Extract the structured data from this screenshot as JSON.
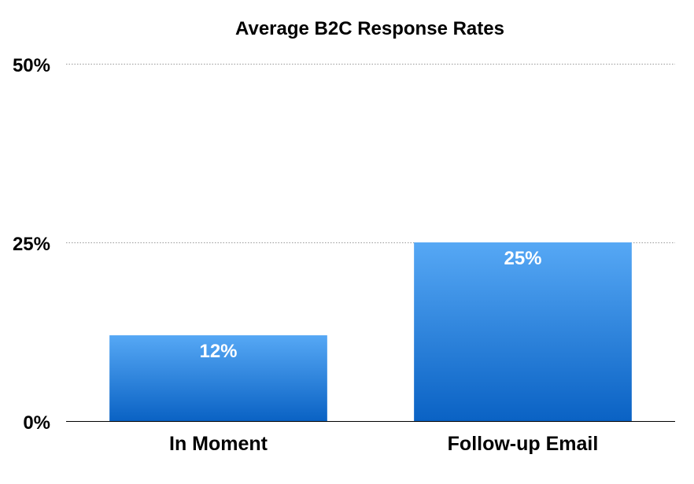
{
  "chart_data": {
    "type": "bar",
    "title": "Average B2C Response Rates",
    "categories": [
      "In Moment",
      "Follow-up Email"
    ],
    "values": [
      12,
      25
    ],
    "data_labels": [
      "12%",
      "25%"
    ],
    "y_ticks": [
      {
        "value": 0,
        "label": "0%"
      },
      {
        "value": 25,
        "label": "25%"
      },
      {
        "value": 50,
        "label": "50%"
      }
    ],
    "ylim": [
      0,
      50
    ],
    "grid": true,
    "legend": "none",
    "colors": {
      "bar_top": "#56a8f5",
      "bar_bottom": "#0a62c4",
      "grid": "#9a9a9a",
      "axis": "#000000",
      "text": "#000000",
      "data_label": "#ffffff"
    }
  }
}
